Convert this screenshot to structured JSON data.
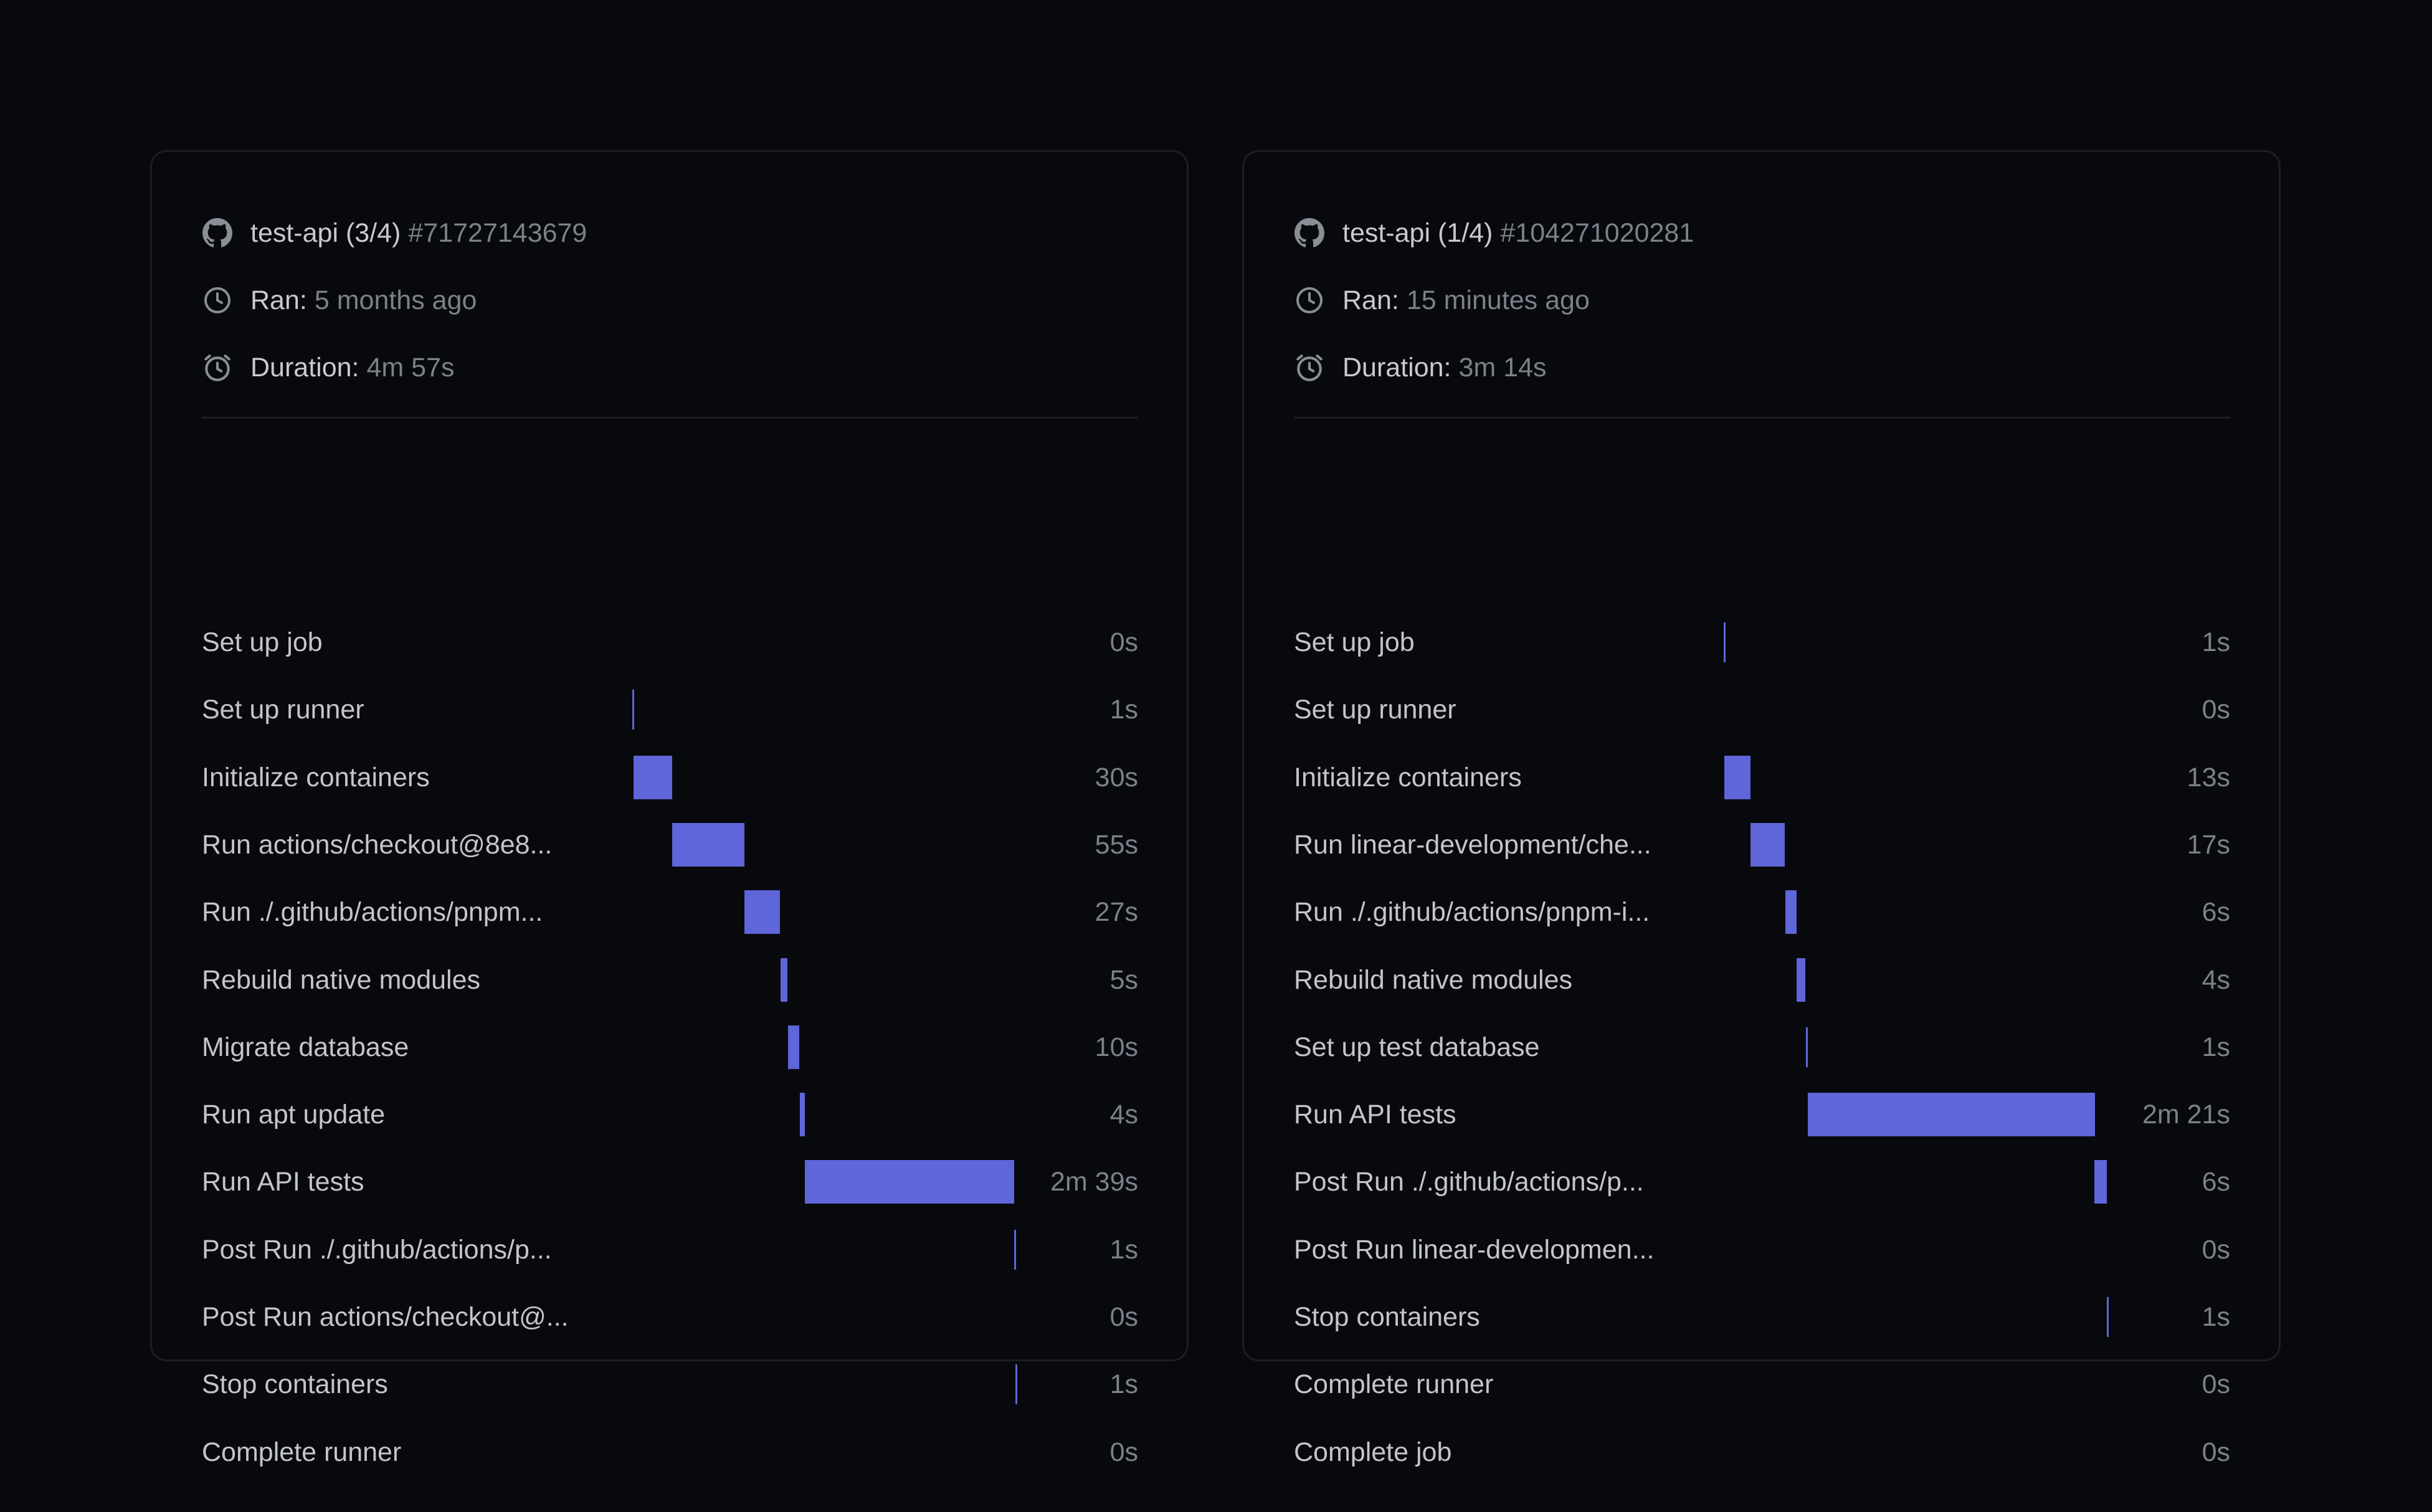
{
  "colors": {
    "background": "#08090c",
    "card_border": "#1c1e24",
    "bar": "#5e66d9",
    "text_primary": "#c3c5cb",
    "text_secondary": "#7d808a"
  },
  "runs": [
    {
      "job_title": "test-api (3/4)",
      "job_id": "#71727143679",
      "ran_label": "Ran:",
      "ran_value": "5 months ago",
      "duration_label": "Duration:",
      "duration_value": "4m 57s",
      "icons": {
        "source": "github-icon",
        "ran": "clock-icon",
        "duration": "alarm-clock-icon"
      },
      "steps": [
        {
          "name": "Set up job",
          "duration": "0s"
        },
        {
          "name": "Set up runner",
          "duration": "1s"
        },
        {
          "name": "Initialize containers",
          "duration": "30s"
        },
        {
          "name": "Run actions/checkout@8e8...",
          "duration": "55s"
        },
        {
          "name": "Run ./.github/actions/pnpm...",
          "duration": "27s"
        },
        {
          "name": "Rebuild native modules",
          "duration": "5s"
        },
        {
          "name": "Migrate database",
          "duration": "10s"
        },
        {
          "name": "Run apt update",
          "duration": "4s"
        },
        {
          "name": "Run API tests",
          "duration": "2m 39s"
        },
        {
          "name": "Post Run ./.github/actions/p...",
          "duration": "1s"
        },
        {
          "name": "Post Run actions/checkout@...",
          "duration": "0s"
        },
        {
          "name": "Stop containers",
          "duration": "1s"
        },
        {
          "name": "Complete runner",
          "duration": "0s"
        }
      ]
    },
    {
      "job_title": "test-api (1/4)",
      "job_id": "#104271020281",
      "ran_label": "Ran:",
      "ran_value": "15 minutes ago",
      "duration_label": "Duration:",
      "duration_value": "3m 14s",
      "icons": {
        "source": "github-icon",
        "ran": "clock-icon",
        "duration": "alarm-clock-icon"
      },
      "steps": [
        {
          "name": "Set up job",
          "duration": "1s"
        },
        {
          "name": "Set up runner",
          "duration": "0s"
        },
        {
          "name": "Initialize containers",
          "duration": "13s"
        },
        {
          "name": "Run linear-development/che...",
          "duration": "17s"
        },
        {
          "name": "Run ./.github/actions/pnpm-i...",
          "duration": "6s"
        },
        {
          "name": "Rebuild native modules",
          "duration": "4s"
        },
        {
          "name": "Set up test database",
          "duration": "1s"
        },
        {
          "name": "Run API tests",
          "duration": "2m 21s"
        },
        {
          "name": "Post Run ./.github/actions/p...",
          "duration": "6s"
        },
        {
          "name": "Post Run linear-developmen...",
          "duration": "0s"
        },
        {
          "name": "Stop containers",
          "duration": "1s"
        },
        {
          "name": "Complete runner",
          "duration": "0s"
        },
        {
          "name": "Complete job",
          "duration": "0s"
        }
      ]
    }
  ]
}
